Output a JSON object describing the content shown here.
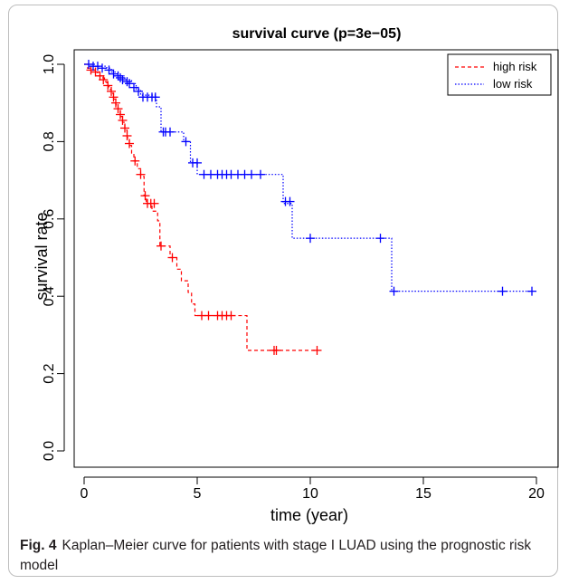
{
  "chart_data": {
    "type": "line",
    "title": "survival curve (p=3e−05)",
    "xlabel": "time (year)",
    "ylabel": "survival rate",
    "xlim": [
      0,
      20
    ],
    "ylim": [
      0,
      1
    ],
    "x_ticks": [
      "0",
      "5",
      "10",
      "15",
      "20"
    ],
    "y_ticks": [
      "0.0",
      "0.2",
      "0.4",
      "0.6",
      "0.8",
      "1.0"
    ],
    "grid": false,
    "legend_position": "top-right",
    "series": [
      {
        "name": "high risk",
        "color": "#ff0000",
        "line_style": "dashed",
        "steps": [
          [
            0,
            1.0
          ],
          [
            0.15,
            0.99
          ],
          [
            0.3,
            0.985
          ],
          [
            0.45,
            0.98
          ],
          [
            0.6,
            0.97
          ],
          [
            0.75,
            0.965
          ],
          [
            0.9,
            0.955
          ],
          [
            1.0,
            0.945
          ],
          [
            1.1,
            0.935
          ],
          [
            1.2,
            0.925
          ],
          [
            1.3,
            0.91
          ],
          [
            1.4,
            0.895
          ],
          [
            1.5,
            0.88
          ],
          [
            1.6,
            0.865
          ],
          [
            1.7,
            0.85
          ],
          [
            1.8,
            0.83
          ],
          [
            1.9,
            0.81
          ],
          [
            2.0,
            0.79
          ],
          [
            2.1,
            0.77
          ],
          [
            2.2,
            0.75
          ],
          [
            2.35,
            0.73
          ],
          [
            2.5,
            0.71
          ],
          [
            2.65,
            0.66
          ],
          [
            2.75,
            0.64
          ],
          [
            3.0,
            0.62
          ],
          [
            3.25,
            0.595
          ],
          [
            3.35,
            0.53
          ],
          [
            3.8,
            0.5
          ],
          [
            4.1,
            0.47
          ],
          [
            4.3,
            0.44
          ],
          [
            4.6,
            0.41
          ],
          [
            4.75,
            0.38
          ],
          [
            4.9,
            0.35
          ],
          [
            7.2,
            0.26
          ],
          [
            10.3,
            0.26
          ]
        ],
        "censored": [
          [
            0.3,
            0.985
          ],
          [
            0.5,
            0.98
          ],
          [
            0.7,
            0.97
          ],
          [
            0.85,
            0.96
          ],
          [
            1.05,
            0.945
          ],
          [
            1.2,
            0.93
          ],
          [
            1.3,
            0.915
          ],
          [
            1.4,
            0.9
          ],
          [
            1.5,
            0.885
          ],
          [
            1.6,
            0.87
          ],
          [
            1.7,
            0.855
          ],
          [
            1.8,
            0.835
          ],
          [
            1.9,
            0.815
          ],
          [
            2.0,
            0.795
          ],
          [
            2.25,
            0.75
          ],
          [
            2.5,
            0.715
          ],
          [
            2.7,
            0.66
          ],
          [
            2.8,
            0.64
          ],
          [
            2.95,
            0.64
          ],
          [
            3.1,
            0.64
          ],
          [
            3.4,
            0.53
          ],
          [
            3.9,
            0.5
          ],
          [
            5.2,
            0.35
          ],
          [
            5.5,
            0.35
          ],
          [
            5.9,
            0.35
          ],
          [
            6.1,
            0.35
          ],
          [
            6.3,
            0.35
          ],
          [
            6.5,
            0.35
          ],
          [
            8.4,
            0.26
          ],
          [
            8.5,
            0.26
          ],
          [
            10.3,
            0.26
          ]
        ]
      },
      {
        "name": "low risk",
        "color": "#0000ff",
        "line_style": "dotted",
        "steps": [
          [
            0,
            1.0
          ],
          [
            0.5,
            0.995
          ],
          [
            1.0,
            0.99
          ],
          [
            1.2,
            0.98
          ],
          [
            1.5,
            0.97
          ],
          [
            1.8,
            0.96
          ],
          [
            2.1,
            0.95
          ],
          [
            2.3,
            0.935
          ],
          [
            2.5,
            0.92
          ],
          [
            3.2,
            0.89
          ],
          [
            3.4,
            0.825
          ],
          [
            4.4,
            0.8
          ],
          [
            4.7,
            0.745
          ],
          [
            5.0,
            0.715
          ],
          [
            8.8,
            0.64
          ],
          [
            9.2,
            0.55
          ],
          [
            13.6,
            0.413
          ],
          [
            19.8,
            0.413
          ]
        ],
        "censored": [
          [
            0.2,
            1.0
          ],
          [
            0.4,
            0.995
          ],
          [
            0.6,
            0.995
          ],
          [
            0.8,
            0.99
          ],
          [
            1.1,
            0.985
          ],
          [
            1.3,
            0.975
          ],
          [
            1.5,
            0.97
          ],
          [
            1.6,
            0.965
          ],
          [
            1.7,
            0.96
          ],
          [
            1.9,
            0.955
          ],
          [
            2.0,
            0.95
          ],
          [
            2.2,
            0.94
          ],
          [
            2.4,
            0.93
          ],
          [
            2.6,
            0.915
          ],
          [
            2.8,
            0.915
          ],
          [
            3.0,
            0.915
          ],
          [
            3.15,
            0.915
          ],
          [
            3.5,
            0.825
          ],
          [
            3.6,
            0.825
          ],
          [
            3.8,
            0.825
          ],
          [
            4.5,
            0.8
          ],
          [
            4.8,
            0.745
          ],
          [
            5.0,
            0.745
          ],
          [
            5.3,
            0.715
          ],
          [
            5.6,
            0.715
          ],
          [
            5.9,
            0.715
          ],
          [
            6.1,
            0.715
          ],
          [
            6.3,
            0.715
          ],
          [
            6.5,
            0.715
          ],
          [
            6.8,
            0.715
          ],
          [
            7.1,
            0.715
          ],
          [
            7.4,
            0.715
          ],
          [
            7.8,
            0.715
          ],
          [
            8.9,
            0.645
          ],
          [
            9.1,
            0.645
          ],
          [
            10.0,
            0.55
          ],
          [
            13.1,
            0.55
          ],
          [
            13.7,
            0.413
          ],
          [
            18.5,
            0.413
          ],
          [
            19.8,
            0.413
          ]
        ]
      }
    ]
  },
  "caption": {
    "label": "Fig. 4",
    "text": "Kaplan–Meier curve for patients with stage I LUAD using the prognostic risk model"
  }
}
